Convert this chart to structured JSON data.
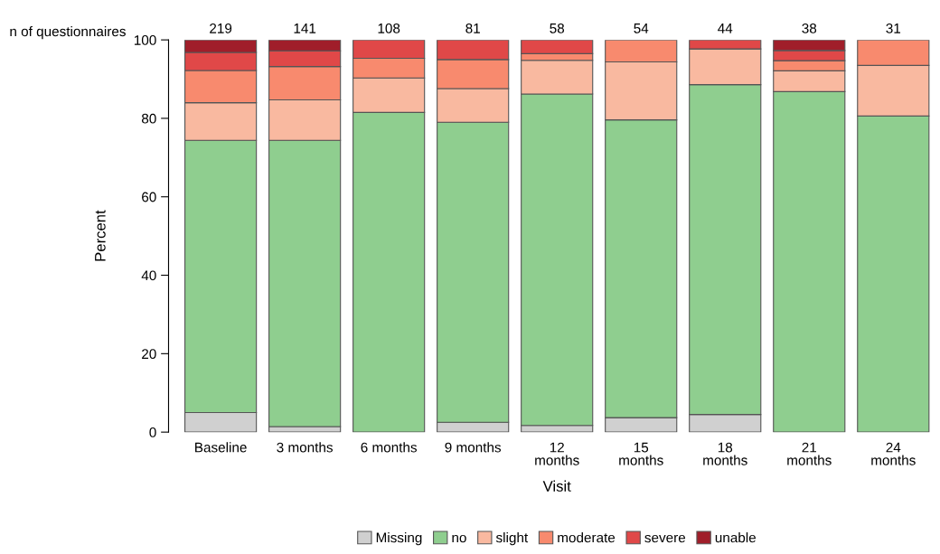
{
  "chart_data": {
    "type": "bar",
    "stacked": true,
    "xlabel": "Visit",
    "ylabel": "Percent",
    "categories": [
      "Baseline",
      "3 months",
      "6 months",
      "9 months",
      "12\nmonths",
      "15\nmonths",
      "18\nmonths",
      "21\nmonths",
      "24\nmonths"
    ],
    "series": [
      {
        "name": "Missing",
        "color": "#d0d0d0",
        "values": [
          5.0,
          1.4,
          null,
          2.5,
          1.7,
          3.7,
          4.5,
          null,
          null
        ]
      },
      {
        "name": "no",
        "color": "#8fce8f",
        "values": [
          69.4,
          73.0,
          81.5,
          76.5,
          84.5,
          75.9,
          84.1,
          86.8,
          80.6
        ]
      },
      {
        "name": "slight",
        "color": "#f9b9a0",
        "values": [
          9.6,
          10.3,
          8.8,
          8.6,
          8.6,
          14.8,
          9.1,
          5.3,
          12.9
        ]
      },
      {
        "name": "moderate",
        "color": "#f88a6e",
        "values": [
          8.2,
          8.5,
          5.0,
          7.4,
          1.7,
          5.6,
          null,
          2.6,
          6.5
        ]
      },
      {
        "name": "severe",
        "color": "#e04848",
        "values": [
          4.6,
          4.0,
          4.7,
          5.0,
          3.5,
          null,
          2.3,
          2.6,
          null
        ]
      },
      {
        "name": "unable",
        "color": "#a01e2a",
        "values": [
          3.2,
          2.8,
          null,
          null,
          null,
          null,
          null,
          2.7,
          null
        ]
      }
    ],
    "ylim": [
      0,
      100
    ],
    "yticks": [
      0,
      20,
      40,
      60,
      80,
      100
    ],
    "grid": false,
    "legend": "bottom",
    "annotations": [
      "n of questionnaires",
      "219",
      "141",
      "108",
      "81",
      "58",
      "54",
      "44",
      "38",
      "31"
    ]
  }
}
